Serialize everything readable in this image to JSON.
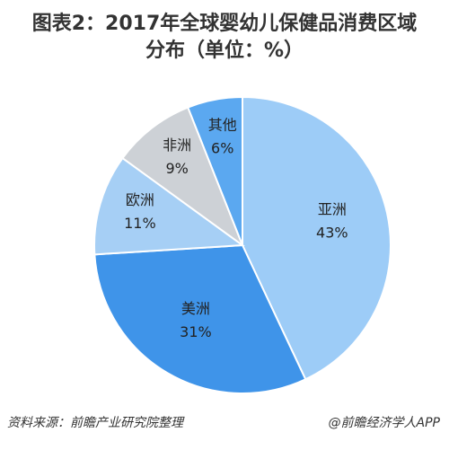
{
  "chart_data": {
    "type": "pie",
    "title": "图表2：2017年全球婴幼儿保健品消费区域分布（单位：%）",
    "categories": [
      "亚洲",
      "美洲",
      "欧洲",
      "非洲",
      "其他"
    ],
    "values": [
      43,
      31,
      11,
      9,
      6
    ],
    "value_labels": [
      "43%",
      "31%",
      "11%",
      "9%",
      "6%"
    ],
    "colors": [
      "#9dccf7",
      "#3f94e9",
      "#a6cff5",
      "#cdd1d6",
      "#5ba8f0"
    ],
    "source": "资料来源：前瞻产业研究院整理",
    "credit": "@前瞻经济学人APP"
  }
}
